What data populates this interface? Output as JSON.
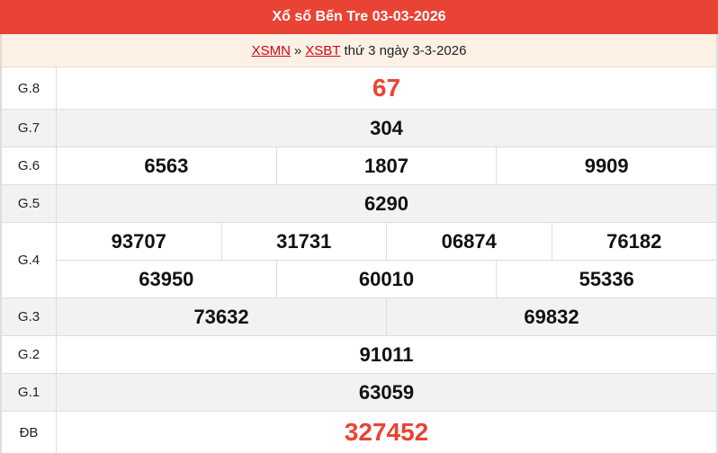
{
  "header": {
    "title": "Xổ số Bến Tre 03-03-2026"
  },
  "subheader": {
    "link1": "XSMN",
    "sep": "»",
    "link2": "XSBT",
    "text": "thứ 3 ngày 3-3-2026"
  },
  "prizes": [
    {
      "label": "G.8",
      "lines": [
        [
          "67"
        ]
      ]
    },
    {
      "label": "G.7",
      "lines": [
        [
          "304"
        ]
      ]
    },
    {
      "label": "G.6",
      "lines": [
        [
          "6563",
          "1807",
          "9909"
        ]
      ]
    },
    {
      "label": "G.5",
      "lines": [
        [
          "6290"
        ]
      ]
    },
    {
      "label": "G.4",
      "lines": [
        [
          "93707",
          "31731",
          "06874",
          "76182"
        ],
        [
          "63950",
          "60010",
          "55336"
        ]
      ]
    },
    {
      "label": "G.3",
      "lines": [
        [
          "73632",
          "69832"
        ]
      ]
    },
    {
      "label": "G.2",
      "lines": [
        [
          "91011"
        ]
      ]
    },
    {
      "label": "G.1",
      "lines": [
        [
          "63059"
        ]
      ]
    },
    {
      "label": "ĐB",
      "lines": [
        [
          "327452"
        ]
      ]
    }
  ],
  "colors": {
    "header": "#e94335",
    "highlight": "#e94335",
    "link": "#d0021b"
  }
}
